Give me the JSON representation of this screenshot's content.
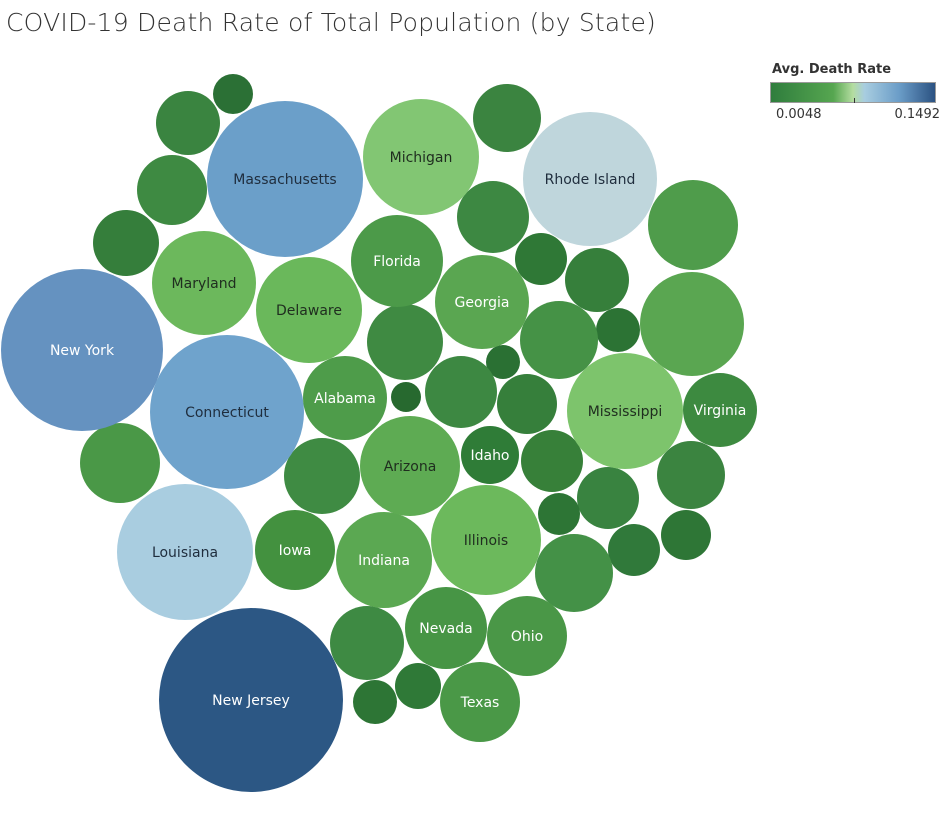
{
  "chart_data": {
    "type": "packed-bubble",
    "title": "COVID-19 Death Rate of Total Population (by State)",
    "color_legend": {
      "title": "Avg. Death Rate",
      "min_label": "0.0048",
      "max_label": "0.1492",
      "min": 0.0048,
      "max": 0.1492,
      "colors": [
        "#2f7d3d",
        "#56a650",
        "#b4dda0",
        "#a8cde0",
        "#6b9dc8",
        "#2b5282"
      ]
    },
    "labeled_states": [
      {
        "state": "New Jersey",
        "death_rate": 0.1492,
        "color": "#2c5784",
        "label_color": "#ffffff"
      },
      {
        "state": "New York",
        "death_rate": 0.125,
        "color": "#6592c0",
        "label_color": "#ffffff"
      },
      {
        "state": "Massachusetts",
        "death_rate": 0.11,
        "color": "#6b9fc9",
        "label_color": "#1f2d3d"
      },
      {
        "state": "Connecticut",
        "death_rate": 0.108,
        "color": "#6fa3cc",
        "label_color": "#1f2d3d"
      },
      {
        "state": "Louisiana",
        "death_rate": 0.085,
        "color": "#a9cde0",
        "label_color": "#1f2d3d"
      },
      {
        "state": "Rhode Island",
        "death_rate": 0.08,
        "color": "#bfd6dc",
        "label_color": "#1f2d3d"
      },
      {
        "state": "Michigan",
        "death_rate": 0.06,
        "color": "#82c673",
        "label_color": "#1f2d1f"
      },
      {
        "state": "Mississippi",
        "death_rate": 0.058,
        "color": "#7dc46c",
        "label_color": "#1f2d1f"
      },
      {
        "state": "Maryland",
        "death_rate": 0.052,
        "color": "#6cb85c",
        "label_color": "#1f2d1f"
      },
      {
        "state": "Delaware",
        "death_rate": 0.051,
        "color": "#6ab85b",
        "label_color": "#1f2d1f"
      },
      {
        "state": "Illinois",
        "death_rate": 0.05,
        "color": "#6cb95c",
        "label_color": "#1f2d1f"
      },
      {
        "state": "Georgia",
        "death_rate": 0.035,
        "color": "#5aa651",
        "label_color": "#ffffff"
      },
      {
        "state": "Indiana",
        "death_rate": 0.036,
        "color": "#5ba852",
        "label_color": "#ffffff"
      },
      {
        "state": "Arizona",
        "death_rate": 0.04,
        "color": "#5eab53",
        "label_color": "#1f2d1f"
      },
      {
        "state": "Florida",
        "death_rate": 0.027,
        "color": "#4c9a49",
        "label_color": "#ffffff"
      },
      {
        "state": "Alabama",
        "death_rate": 0.027,
        "color": "#4e9c4a",
        "label_color": "#ffffff"
      },
      {
        "state": "Nevada",
        "death_rate": 0.024,
        "color": "#479545",
        "label_color": "#ffffff"
      },
      {
        "state": "Texas",
        "death_rate": 0.024,
        "color": "#4a9847",
        "label_color": "#ffffff"
      },
      {
        "state": "Ohio",
        "death_rate": 0.025,
        "color": "#4a9747",
        "label_color": "#ffffff"
      },
      {
        "state": "Iowa",
        "death_rate": 0.02,
        "color": "#43913f",
        "label_color": "#ffffff"
      },
      {
        "state": "Virginia",
        "death_rate": 0.016,
        "color": "#3d8a40",
        "label_color": "#ffffff"
      },
      {
        "state": "Idaho",
        "death_rate": 0.008,
        "color": "#2f7c37",
        "label_color": "#ffffff"
      }
    ]
  }
}
